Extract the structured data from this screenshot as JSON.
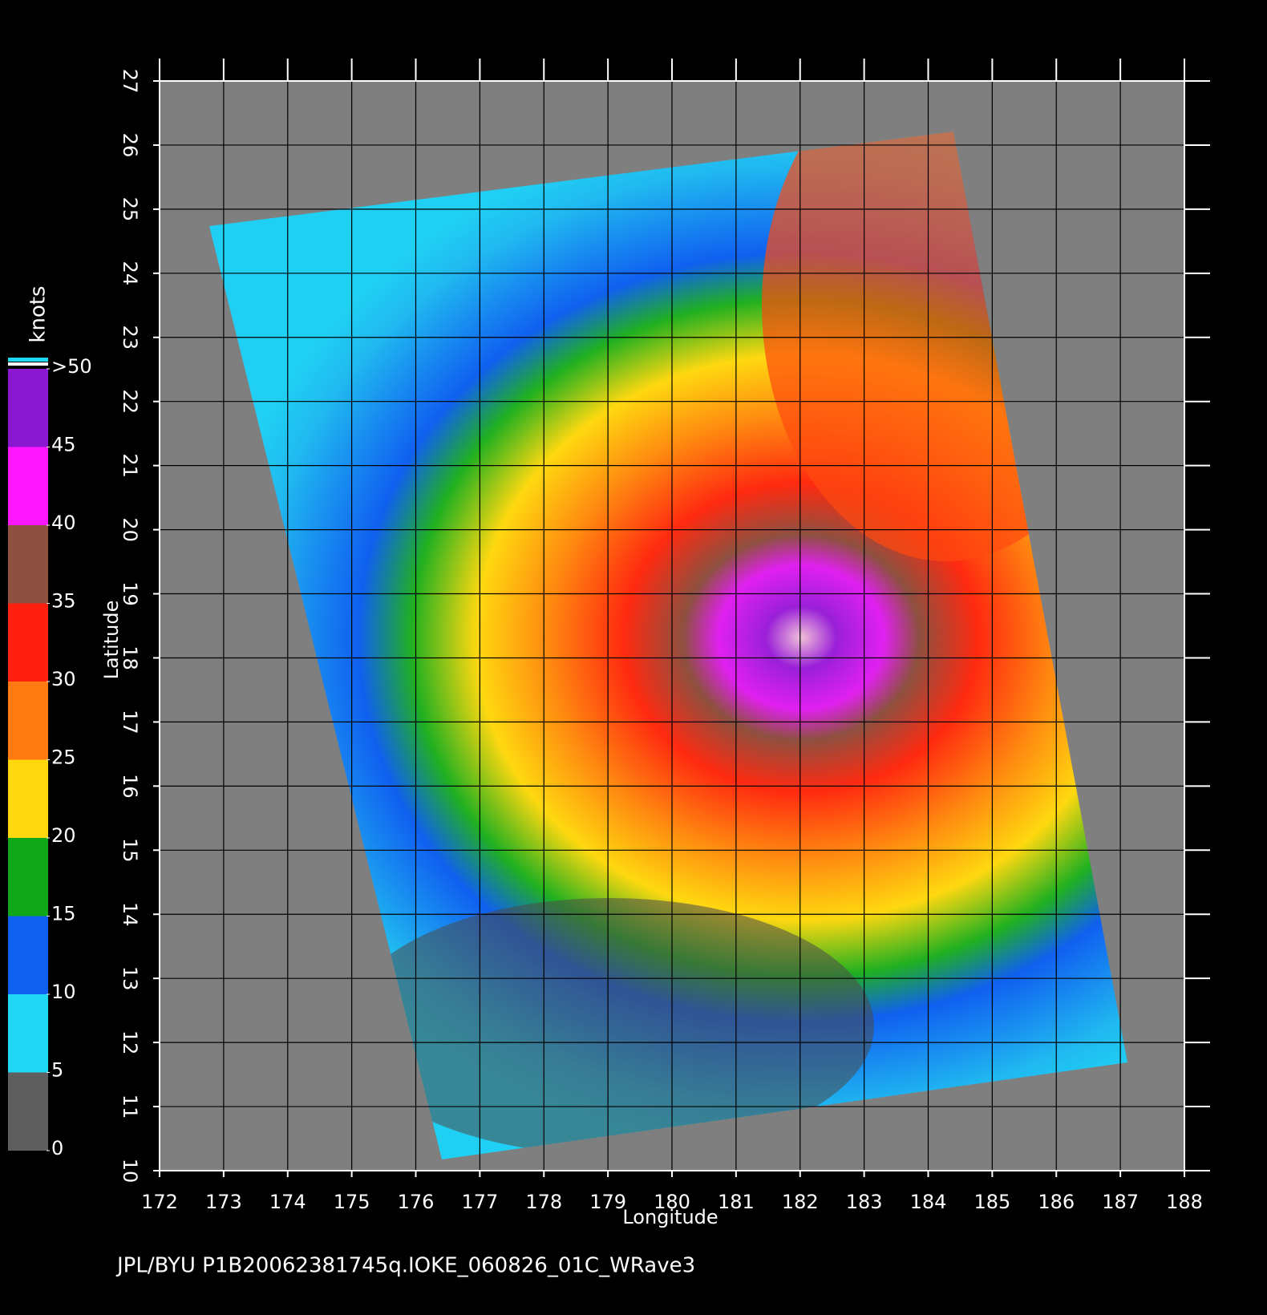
{
  "chart_data": {
    "type": "wind-map",
    "caption": "JPL/BYU  P1B20062381745q.IOKE_060826_01C_WRave3",
    "xlabel": "Longitude",
    "ylabel": "Latitude",
    "xlim": [
      172,
      188
    ],
    "ylim": [
      10,
      27
    ],
    "xticks": [
      172,
      173,
      174,
      175,
      176,
      177,
      178,
      179,
      180,
      181,
      182,
      183,
      184,
      185,
      186,
      187,
      188
    ],
    "yticks": [
      10,
      11,
      12,
      13,
      14,
      15,
      16,
      17,
      18,
      19,
      20,
      21,
      22,
      23,
      24,
      25,
      26,
      27
    ],
    "grid": true,
    "colorbar": {
      "title": "knots",
      "lim": [
        0,
        50
      ],
      "ticks": [
        0,
        5,
        10,
        15,
        20,
        25,
        30,
        35,
        40,
        45,
        {
          "value": 50,
          "label": ">50"
        }
      ],
      "colors": [
        "#5e5e5e",
        "#20d8f4",
        "#1060f0",
        "#10a818",
        "#ffd810",
        "#ff7a10",
        "#ff2010",
        "#8e5040",
        "#ff18ff",
        "#8a18d0"
      ]
    }
  }
}
